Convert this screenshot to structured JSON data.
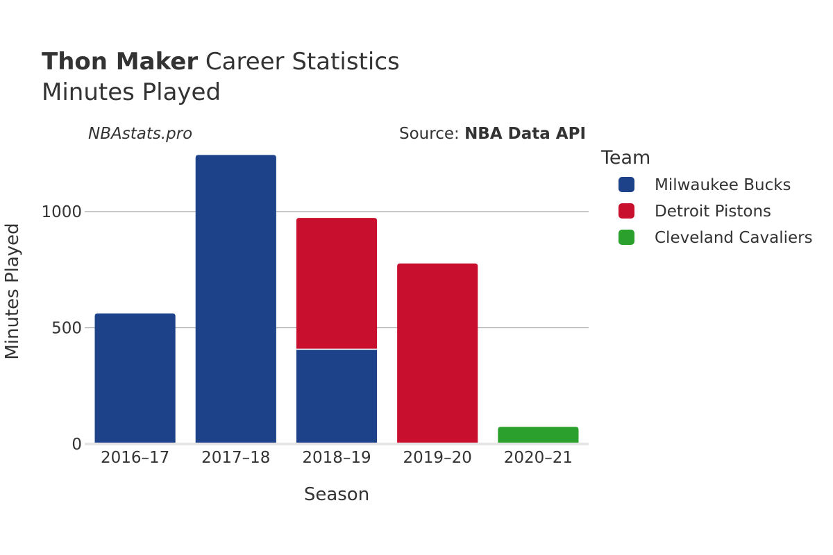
{
  "title": {
    "player": "Thon Maker",
    "suffix": " Career Statistics",
    "subtitle": "Minutes Played"
  },
  "watermark": "NBAstats.pro",
  "source": {
    "prefix": "Source: ",
    "name": "NBA Data API"
  },
  "legend": {
    "title": "Team"
  },
  "chart_data": {
    "type": "bar",
    "stacked": true,
    "categories": [
      "2016–17",
      "2017–18",
      "2018–19",
      "2019–20",
      "2020–21"
    ],
    "series": [
      {
        "name": "Milwaukee Bucks",
        "color": "#1d428a",
        "values": [
          562,
          1244,
          408,
          0,
          0
        ]
      },
      {
        "name": "Detroit Pistons",
        "color": "#c8102e",
        "values": [
          0,
          0,
          565,
          777,
          0
        ]
      },
      {
        "name": "Cleveland Cavaliers",
        "color": "#2ca02c",
        "values": [
          0,
          0,
          0,
          0,
          74
        ]
      }
    ],
    "xlabel": "Season",
    "ylabel": "Minutes Played",
    "yticks": [
      0,
      500,
      1000
    ],
    "ylim": [
      0,
      1260
    ],
    "grid": true,
    "legend_position": "right"
  }
}
